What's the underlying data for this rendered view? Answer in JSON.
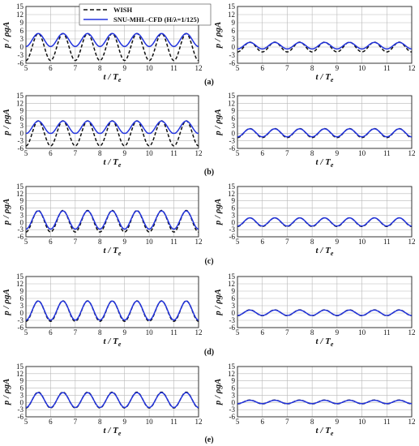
{
  "figure": {
    "legend": {
      "items": [
        {
          "label": "WISH",
          "color": "#111111",
          "style": "dashed"
        },
        {
          "label": "SNU-MHL-CFD (H/λ=1/125)",
          "color": "#2233dd",
          "style": "solid"
        }
      ],
      "placement": "top-left panel, top-right"
    },
    "xlabel_parts": {
      "t": "t",
      "slash": " / ",
      "T": "T",
      "sub": "e"
    },
    "ylabel": "p / ρgA",
    "rows": [
      {
        "label": "(a)"
      },
      {
        "label": "(b)"
      },
      {
        "label": "(c)"
      },
      {
        "label": "(d)"
      },
      {
        "label": "(e)"
      }
    ]
  },
  "chart_data": {
    "type": "line",
    "xlim": [
      5,
      12
    ],
    "ylim": [
      -6,
      15
    ],
    "xticks": [
      "5",
      "6",
      "7",
      "8",
      "9",
      "10",
      "11",
      "12"
    ],
    "yticks": [
      "-6",
      "-3",
      "0",
      "3",
      "6",
      "9",
      "12",
      "15"
    ],
    "grid": true,
    "period": 1,
    "phase_at_peak": 5.5,
    "panels": [
      {
        "row": "(a)",
        "col": "left",
        "wish": {
          "mean": 0,
          "amp": 5.0
        },
        "cfd": {
          "mean": 2.6,
          "amp": 2.4,
          "clip_min": 0
        }
      },
      {
        "row": "(a)",
        "col": "right",
        "wish": {
          "mean": 0,
          "amp": 1.8
        },
        "cfd": {
          "mean": 0.5,
          "amp": 1.2
        }
      },
      {
        "row": "(b)",
        "col": "left",
        "wish": {
          "mean": 0,
          "amp": 5.0
        },
        "cfd": {
          "mean": 2.4,
          "amp": 2.5,
          "clip_min": 0
        }
      },
      {
        "row": "(b)",
        "col": "right",
        "wish": {
          "mean": 0.1,
          "amp": 1.8
        },
        "cfd": {
          "mean": 0.2,
          "amp": 1.6
        }
      },
      {
        "row": "(c)",
        "col": "left",
        "wish": {
          "mean": 0.5,
          "amp": 4.5
        },
        "cfd": {
          "mean": 1.0,
          "amp": 3.8
        }
      },
      {
        "row": "(c)",
        "col": "right",
        "wish": {
          "mean": 0.1,
          "amp": 1.8
        },
        "cfd": {
          "mean": 0.2,
          "amp": 1.7
        }
      },
      {
        "row": "(d)",
        "col": "left",
        "wish": {
          "mean": 0.8,
          "amp": 4.2
        },
        "cfd": {
          "mean": 1.0,
          "amp": 3.9
        }
      },
      {
        "row": "(d)",
        "col": "right",
        "wish": {
          "mean": 0.1,
          "amp": 1.2
        },
        "cfd": {
          "mean": 0.1,
          "amp": 1.1
        }
      },
      {
        "row": "(e)",
        "col": "left",
        "wish": {
          "mean": 1.0,
          "amp": 3.3
        },
        "cfd": {
          "mean": 1.0,
          "amp": 3.1
        }
      },
      {
        "row": "(e)",
        "col": "right",
        "wish": {
          "mean": 0.2,
          "amp": 0.8
        },
        "cfd": {
          "mean": 0.2,
          "amp": 0.7
        }
      }
    ]
  }
}
